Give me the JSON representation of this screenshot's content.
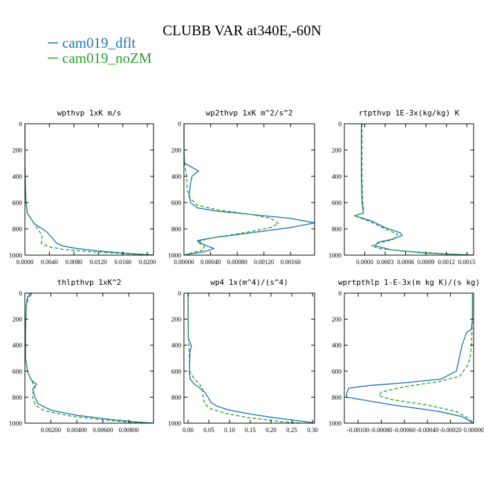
{
  "title": "CLUBB VAR at340E,-60N",
  "legend": [
    {
      "label": "cam019_dflt",
      "color": "#1f77b4",
      "dash": "solid"
    },
    {
      "label": "cam019_noZM",
      "color": "#2ca02c",
      "dash": "dashed"
    }
  ],
  "chart_data": [
    {
      "type": "line",
      "title": "wpthvp  1xK m/s",
      "xlim": [
        0.0,
        0.021
      ],
      "xticks": [
        0.0,
        0.004,
        0.008,
        0.012,
        0.016,
        0.02
      ],
      "xticklabels": [
        "0.0000",
        "0.0040",
        "0.0080",
        "0.0120",
        "0.0160",
        "0.0200"
      ],
      "ylim": [
        0,
        1000
      ],
      "yticks": [
        0,
        200,
        400,
        600,
        800,
        1000
      ],
      "yticklabels": [
        "0",
        "200",
        "400",
        "600",
        "800",
        "1000"
      ],
      "series": [
        {
          "name": "cam019_dflt",
          "x": [
            0.0,
            0.0,
            0.0001,
            0.0002,
            0.0004,
            0.0007,
            0.0015,
            0.0025,
            0.0035,
            0.0045,
            0.0052,
            0.0062,
            0.0085,
            0.0115,
            0.015,
            0.0185,
            0.021
          ],
          "y": [
            0,
            300,
            500,
            600,
            680,
            700,
            760,
            790,
            820,
            870,
            910,
            930,
            950,
            965,
            980,
            992,
            1000
          ]
        },
        {
          "name": "cam019_noZM",
          "x": [
            0.0,
            0.0,
            0.0001,
            0.0002,
            0.0004,
            0.0008,
            0.0018,
            0.0028,
            0.0027,
            0.0038,
            0.006,
            0.009,
            0.013,
            0.0165,
            0.0195,
            0.021
          ],
          "y": [
            0,
            300,
            500,
            600,
            680,
            710,
            780,
            850,
            910,
            935,
            955,
            968,
            980,
            990,
            996,
            1000
          ]
        }
      ]
    },
    {
      "type": "line",
      "title": "wp2thvp  1xK m^2/s^2",
      "xlim": [
        0.0,
        0.00196
      ],
      "xticks": [
        0.0,
        0.0004,
        0.0008,
        0.0012,
        0.0016
      ],
      "xticklabels": [
        "0.00000",
        "0.00040",
        "0.00080",
        "0.00120",
        "0.00160"
      ],
      "ylim": [
        0,
        1000
      ],
      "yticks": [
        0,
        200,
        400,
        600,
        800,
        1000
      ],
      "yticklabels": [
        "0",
        "200",
        "400",
        "600",
        "800",
        "1000"
      ],
      "series": [
        {
          "name": "cam019_dflt",
          "x": [
            0.0,
            0.0,
            1e-05,
            0.00022,
            0.00012,
            0.0001,
            8e-05,
            0.0001,
            0.0002,
            0.0005,
            0.001,
            0.0016,
            0.00196,
            0.0016,
            0.001,
            0.0004,
            0.0002,
            0.0003,
            0.00045,
            0.0003,
            0.0001,
            0.0
          ],
          "y": [
            0,
            200,
            300,
            360,
            400,
            450,
            540,
            600,
            640,
            665,
            690,
            720,
            755,
            790,
            830,
            870,
            890,
            920,
            950,
            975,
            990,
            1000
          ]
        },
        {
          "name": "cam019_noZM",
          "x": [
            0.0,
            0.0,
            1e-05,
            4e-05,
            5e-05,
            8e-05,
            0.0002,
            0.0005,
            0.001,
            0.0013,
            0.00142,
            0.0013,
            0.0009,
            0.0004,
            0.0002,
            0.0003,
            0.0003,
            0.0001,
            0.0
          ],
          "y": [
            0,
            200,
            300,
            400,
            500,
            560,
            620,
            655,
            690,
            720,
            760,
            790,
            830,
            870,
            900,
            930,
            960,
            985,
            1000
          ]
        }
      ]
    },
    {
      "type": "line",
      "title": "rtpthvp  1E-3x(kg/kg) K",
      "xlim": [
        -0.0003,
        0.0016
      ],
      "xticks": [
        0.0,
        0.0003,
        0.0006,
        0.0009,
        0.0012,
        0.0015
      ],
      "xticklabels": [
        "0.0000",
        "0.0003",
        "0.0006",
        "0.0009",
        "0.0012",
        "0.0015"
      ],
      "ylim": [
        0,
        1000
      ],
      "yticks": [
        0,
        200,
        400,
        600,
        800,
        1000
      ],
      "yticklabels": [
        "0",
        "200",
        "400",
        "600",
        "800",
        "1000"
      ],
      "series": [
        {
          "name": "cam019_dflt",
          "x": [
            -5e-05,
            -5e-05,
            -5e-05,
            -4e-05,
            -3e-05,
            -2e-05,
            -0.00015,
            0.0001,
            0.0003,
            0.00052,
            0.00055,
            0.0004,
            0.0002,
            0.00015,
            0.0004,
            0.0009,
            0.0016
          ],
          "y": [
            0,
            200,
            400,
            600,
            640,
            680,
            700,
            740,
            790,
            830,
            850,
            880,
            900,
            930,
            960,
            985,
            1000
          ]
        },
        {
          "name": "cam019_noZM",
          "x": [
            -4e-05,
            -4e-05,
            -4e-05,
            -3e-05,
            -2e-05,
            -2e-05,
            -0.00015,
            0.0001,
            0.0003,
            0.00048,
            0.00042,
            0.0002,
            0.0001,
            0.0002,
            0.0006,
            0.0012,
            0.0016
          ],
          "y": [
            0,
            200,
            400,
            600,
            640,
            680,
            700,
            750,
            800,
            840,
            880,
            910,
            930,
            950,
            970,
            990,
            1000
          ]
        }
      ]
    },
    {
      "type": "line",
      "title": "thlpthvp  1xK^2",
      "xlim": [
        0.0,
        0.0099
      ],
      "xticks": [
        0.002,
        0.004,
        0.006,
        0.008
      ],
      "xticklabels": [
        "0.00200",
        "0.00400",
        "0.00600",
        "0.00800"
      ],
      "ylim": [
        0,
        1000
      ],
      "yticks": [
        0,
        200,
        400,
        600,
        800,
        1000
      ],
      "yticklabels": [
        "0",
        "200",
        "400",
        "600",
        "800",
        "1000"
      ],
      "series": [
        {
          "name": "cam019_dflt",
          "x": [
            0.0003,
            0.0004,
            0.0002,
            0.0001,
            5e-05,
            5e-05,
            0.0002,
            0.0004,
            0.0006,
            0.0009,
            0.0006,
            0.0007,
            0.001,
            0.002,
            0.004,
            0.0065,
            0.0085,
            0.0099
          ],
          "y": [
            0,
            10,
            30,
            100,
            300,
            500,
            600,
            650,
            680,
            700,
            740,
            780,
            850,
            900,
            940,
            970,
            990,
            1000
          ]
        },
        {
          "name": "cam019_noZM",
          "x": [
            0.0003,
            0.0006,
            0.0003,
            0.0001,
            5e-05,
            5e-05,
            0.0002,
            0.0004,
            0.0006,
            0.0008,
            0.0006,
            0.0006,
            0.0008,
            0.0015,
            0.0035,
            0.006,
            0.008,
            0.0092
          ],
          "y": [
            0,
            8,
            30,
            100,
            300,
            500,
            600,
            650,
            690,
            720,
            770,
            800,
            860,
            905,
            945,
            975,
            992,
            1000
          ]
        }
      ]
    },
    {
      "type": "line",
      "title": "wp4  1x(m^4)/(s^4)",
      "xlim": [
        -0.01,
        0.305
      ],
      "xticks": [
        0.0,
        0.05,
        0.1,
        0.15,
        0.2,
        0.25,
        0.3
      ],
      "xticklabels": [
        "0.00",
        "0.05",
        "0.10",
        "0.15",
        "0.20",
        "0.25",
        "0.30"
      ],
      "ylim": [
        0,
        1000
      ],
      "yticks": [
        0,
        200,
        400,
        600,
        800,
        1000
      ],
      "yticklabels": [
        "0",
        "200",
        "400",
        "600",
        "800",
        "1000"
      ],
      "series": [
        {
          "name": "cam019_dflt",
          "x": [
            0.0,
            0.0,
            0.001,
            0.005,
            0.008,
            0.005,
            0.003,
            0.005,
            0.015,
            0.028,
            0.04,
            0.048,
            0.055,
            0.07,
            0.1,
            0.15,
            0.2,
            0.25,
            0.29,
            0.305
          ],
          "y": [
            0,
            200,
            350,
            380,
            410,
            440,
            600,
            660,
            700,
            730,
            760,
            800,
            840,
            870,
            900,
            930,
            955,
            975,
            992,
            1000
          ]
        },
        {
          "name": "cam019_noZM",
          "x": [
            0.0,
            0.0,
            0.001,
            0.002,
            0.003,
            0.004,
            0.015,
            0.028,
            0.035,
            0.036,
            0.04,
            0.055,
            0.09,
            0.14,
            0.19,
            0.23,
            0.26,
            0.27
          ],
          "y": [
            0,
            200,
            350,
            400,
            500,
            600,
            660,
            700,
            740,
            800,
            850,
            890,
            925,
            955,
            975,
            990,
            997,
            1000
          ]
        }
      ]
    },
    {
      "type": "line",
      "title": "wprtpthlp  1-E-3x(m kg K)/(s kg)",
      "xlim": [
        -0.00112,
        0.0
      ],
      "xticks": [
        -0.001,
        -0.0008,
        -0.0006,
        -0.0004,
        -0.0002,
        0.0
      ],
      "xticklabels": [
        "-0.00100",
        "-0.00080",
        "-0.00060",
        "-0.00040",
        "-0.00020",
        "0.00000"
      ],
      "ylim": [
        0,
        1000
      ],
      "yticks": [
        0,
        200,
        400,
        600,
        800,
        1000
      ],
      "yticklabels": [
        "0",
        "200",
        "400",
        "600",
        "800",
        "1000"
      ],
      "series": [
        {
          "name": "cam019_dflt",
          "x": [
            -1e-05,
            -1e-05,
            -2e-05,
            -6e-05,
            -0.0001,
            -0.00015,
            -0.00028,
            -0.0006,
            -0.0009,
            -0.00108,
            -0.0011,
            -0.0011,
            -0.0007,
            -0.0003,
            -0.0001,
            0.0
          ],
          "y": [
            0,
            200,
            280,
            300,
            400,
            600,
            660,
            690,
            710,
            730,
            770,
            800,
            860,
            910,
            950,
            1000
          ]
        },
        {
          "name": "cam019_noZM",
          "x": [
            -1e-05,
            -1e-05,
            -2e-05,
            -3e-05,
            -5e-05,
            -0.00012,
            -0.0003,
            -0.0006,
            -0.0008,
            -0.00082,
            -0.0007,
            -0.0004,
            -0.00015,
            -5e-05,
            0.0
          ],
          "y": [
            0,
            200,
            400,
            500,
            550,
            640,
            680,
            720,
            760,
            790,
            820,
            860,
            910,
            960,
            1000
          ]
        }
      ]
    }
  ]
}
